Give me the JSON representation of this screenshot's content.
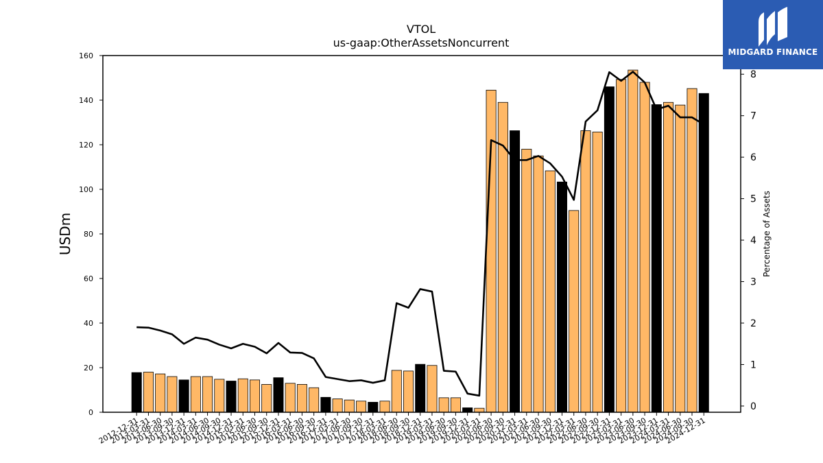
{
  "chart_data": {
    "type": "bar",
    "title": "VTOL",
    "subtitle": "us-gaap:OtherAssetsNoncurrent",
    "ylabel": "USDm",
    "y2label": "Percentage of Assets",
    "ylim": [
      0,
      160
    ],
    "y2lim": [
      -0.15,
      8.45
    ],
    "yticks": [
      0,
      20,
      40,
      60,
      80,
      100,
      120,
      140,
      160
    ],
    "y2ticks": [
      0,
      1,
      2,
      3,
      4,
      5,
      6,
      7,
      8
    ],
    "categories": [
      "2012-12-31",
      "2013-03-31",
      "2013-06-30",
      "2013-09-30",
      "2013-12-31",
      "2014-03-31",
      "2014-06-30",
      "2014-09-30",
      "2014-12-31",
      "2015-03-31",
      "2015-06-30",
      "2015-09-30",
      "2015-12-31",
      "2016-03-31",
      "2016-06-30",
      "2016-09-30",
      "2016-12-31",
      "2017-03-31",
      "2017-06-30",
      "2017-09-30",
      "2017-12-31",
      "2018-03-31",
      "2018-06-30",
      "2018-09-30",
      "2018-12-31",
      "2019-03-31",
      "2019-06-30",
      "2019-09-30",
      "2019-12-31",
      "2020-03-31",
      "2020-06-30",
      "2020-09-30",
      "2020-12-31",
      "2021-03-31",
      "2021-06-30",
      "2021-09-30",
      "2021-12-31",
      "2022-03-31",
      "2022-06-30",
      "2022-09-30",
      "2022-12-31",
      "2023-03-31",
      "2023-06-30",
      "2023-09-30",
      "2023-12-31",
      "2024-03-31",
      "2024-06-30",
      "2024-09-30",
      "2024-12-31"
    ],
    "series": [
      {
        "type": "bar",
        "values": [
          17.8,
          18.0,
          17.2,
          16.0,
          14.5,
          16.0,
          16.0,
          14.8,
          14.0,
          15.0,
          14.5,
          12.5,
          15.5,
          13.0,
          12.5,
          11.0,
          6.7,
          6.0,
          5.5,
          5.0,
          4.5,
          5.0,
          18.8,
          18.5,
          21.5,
          21.0,
          6.5,
          6.5,
          2.0,
          1.8,
          144.5,
          139.0,
          126.3,
          118.0,
          115.0,
          108.3,
          103.3,
          90.5,
          126.3,
          125.7,
          146.0,
          149.3,
          153.5,
          148.0,
          138.0,
          139.0,
          137.8,
          145.2,
          143.0
        ],
        "year_end": [
          true,
          false,
          false,
          false,
          true,
          false,
          false,
          false,
          true,
          false,
          false,
          false,
          true,
          false,
          false,
          false,
          true,
          false,
          false,
          false,
          true,
          false,
          false,
          false,
          true,
          false,
          false,
          false,
          true,
          false,
          false,
          false,
          true,
          false,
          false,
          false,
          true,
          false,
          false,
          false,
          true,
          false,
          false,
          false,
          true,
          false,
          false,
          false,
          true
        ]
      },
      {
        "type": "line",
        "axis": "right",
        "values": [
          1.9,
          1.89,
          1.82,
          1.73,
          1.5,
          1.65,
          1.6,
          1.48,
          1.39,
          1.5,
          1.43,
          1.27,
          1.52,
          1.29,
          1.28,
          1.15,
          0.7,
          0.65,
          0.6,
          0.62,
          0.56,
          0.62,
          2.48,
          2.37,
          2.82,
          2.76,
          0.85,
          0.83,
          0.3,
          0.25,
          6.41,
          6.28,
          5.93,
          5.93,
          6.03,
          5.85,
          5.53,
          4.97,
          6.86,
          7.13,
          8.05,
          7.84,
          8.06,
          7.8,
          7.15,
          7.24,
          6.96,
          6.96,
          6.79
        ]
      }
    ],
    "colors": {
      "bar": "#ffb866",
      "bar_year_end": "#000000",
      "line": "#000000",
      "brand": "#2b5cb3"
    }
  },
  "brand": {
    "name": "MIDGARD FINANCE",
    "icon": "midgard-logo-icon"
  }
}
